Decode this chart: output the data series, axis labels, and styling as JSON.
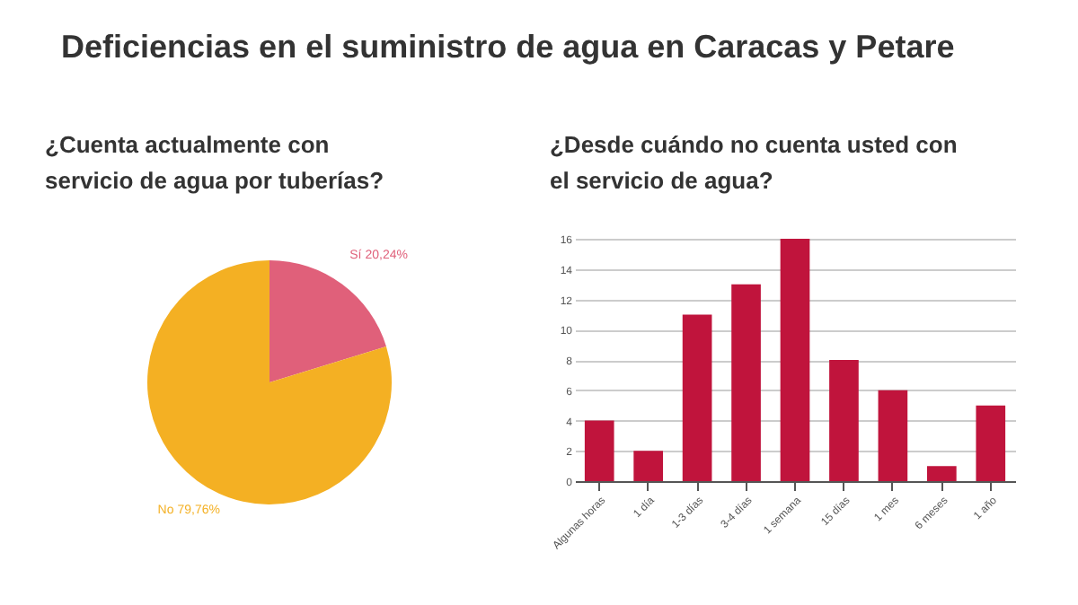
{
  "chart_data": [
    {
      "type": "pie",
      "title": "Deficiencias en el suministro de agua en Caracas y Petare",
      "subtitle": "¿Cuenta actualmente con servicio de agua por tuberías?",
      "categories": [
        "Sí",
        "No"
      ],
      "values": [
        20.24,
        79.76
      ],
      "colors": [
        "#e0607a",
        "#f4b023"
      ],
      "value_labels": [
        "20,24%",
        "79,76%"
      ],
      "legend": false
    },
    {
      "type": "bar",
      "title": "¿Desde cuándo no cuenta usted con el servicio de agua?",
      "categories": [
        "Algunas horas",
        "1 día",
        "1-3 días",
        "3-4 días",
        "1 semana",
        "15 días",
        "1 mes",
        "6 meses",
        "1 año"
      ],
      "series": [
        {
          "color": "#c0143c",
          "values": [
            4,
            2,
            11,
            13,
            16,
            8,
            6,
            1,
            5
          ]
        }
      ],
      "ylim": [
        0,
        16
      ],
      "yticks": [
        0,
        2,
        4,
        6,
        8,
        10,
        12,
        14,
        16
      ],
      "grid": "y"
    }
  ]
}
